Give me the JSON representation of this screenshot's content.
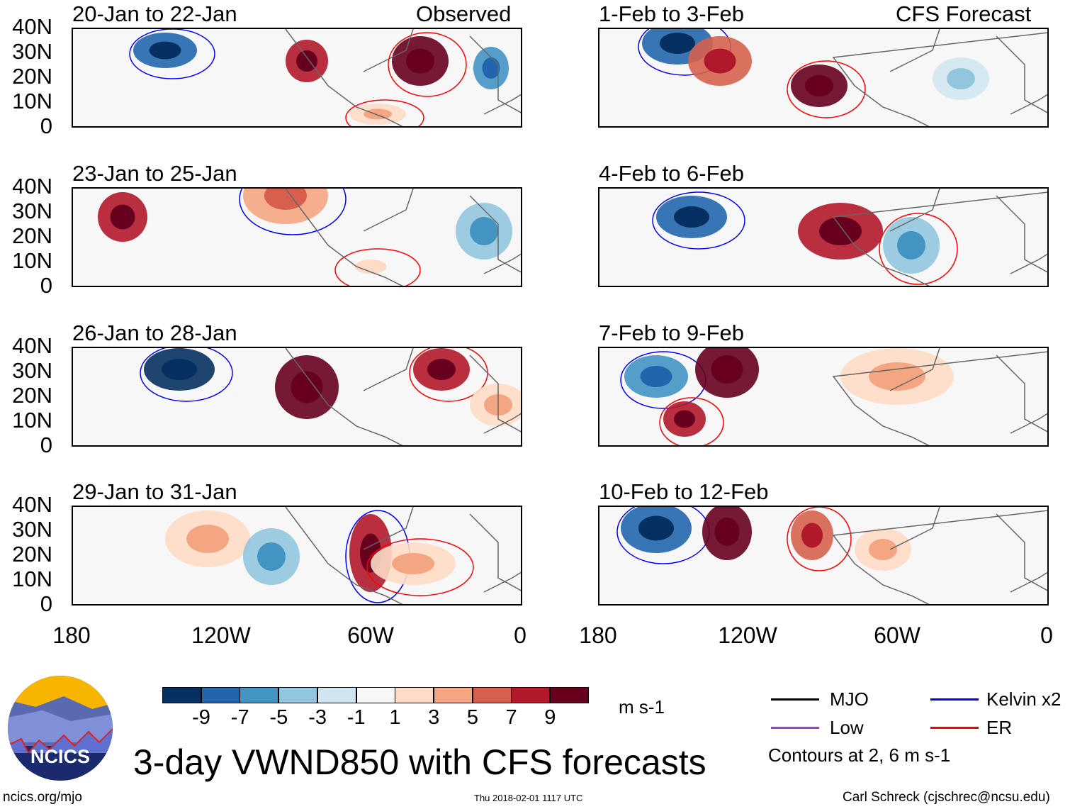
{
  "title": "3-day VWND850 with CFS forecasts",
  "column_headers": {
    "left": "Observed",
    "right": "CFS Forecast"
  },
  "panels_left": [
    "20-Jan to 22-Jan",
    "23-Jan to 25-Jan",
    "26-Jan to 28-Jan",
    "29-Jan to 31-Jan"
  ],
  "panels_right": [
    "1-Feb to 3-Feb",
    "4-Feb to 6-Feb",
    "7-Feb to 9-Feb",
    "10-Feb to 12-Feb"
  ],
  "lat_labels": [
    "40N",
    "30N",
    "20N",
    "10N",
    "0"
  ],
  "lon_labels": [
    "180",
    "120W",
    "60W",
    "0"
  ],
  "colorbar": {
    "labels": [
      "-9",
      "-7",
      "-5",
      "-3",
      "-1",
      "1",
      "3",
      "5",
      "7",
      "9"
    ],
    "colors": [
      "#053061",
      "#2166ac",
      "#4393c3",
      "#92c5de",
      "#d1e5f0",
      "#f7f7f7",
      "#fddbc7",
      "#f4a582",
      "#d6604d",
      "#b2182b",
      "#67001f"
    ],
    "units": "m s-1"
  },
  "legend": {
    "items": [
      {
        "label": "MJO",
        "color": "#000000"
      },
      {
        "label": "Low",
        "color": "#a040d0"
      },
      {
        "label": "Kelvin x2",
        "color": "#0000ff"
      },
      {
        "label": "ER",
        "color": "#ff0000"
      }
    ],
    "note": "Contours at 2, 6 m s-1"
  },
  "logo_text": "NCICS",
  "footer": {
    "url": "ncics.org/mjo",
    "timestamp": "Thu 2018-02-01 1117 UTC",
    "credit": "Carl Schreck (cjschrec@ncsu.edu)"
  }
}
